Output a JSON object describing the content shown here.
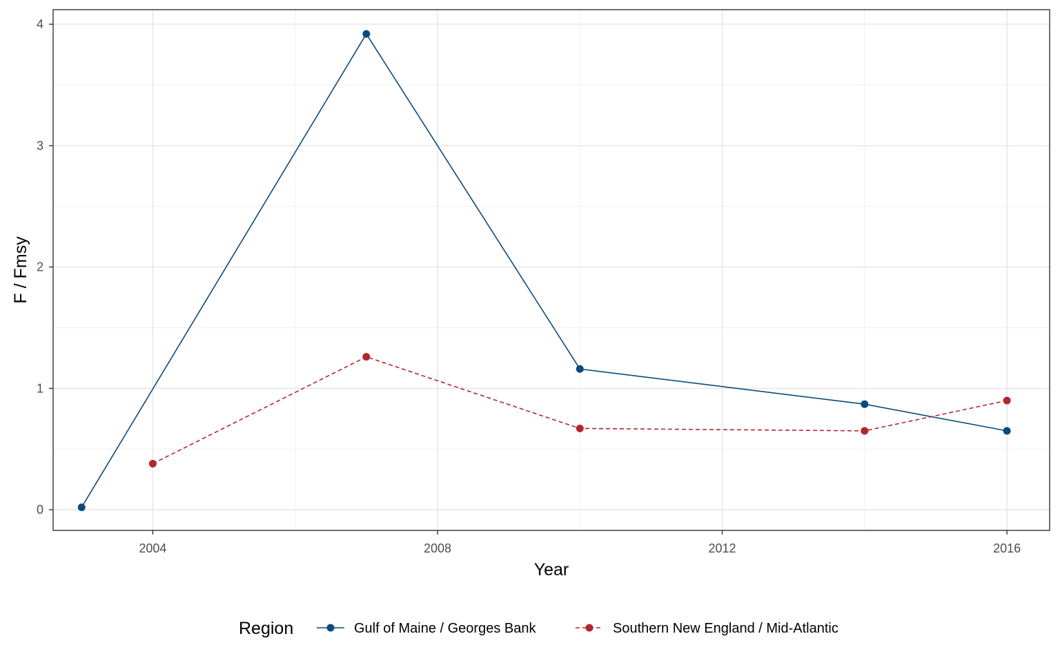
{
  "chart_data": {
    "type": "line",
    "title": "",
    "xlabel": "Year",
    "ylabel": "F / Fmsy",
    "xlim": [
      2002.6,
      2016.6
    ],
    "ylim": [
      -0.17,
      4.12
    ],
    "x_ticks": [
      2004,
      2008,
      2012,
      2016
    ],
    "x_minor_ticks": [
      2006,
      2010,
      2014
    ],
    "y_ticks": [
      0,
      1,
      2,
      3,
      4
    ],
    "y_minor_ticks": [
      0.5,
      1.5,
      2.5,
      3.5
    ],
    "grid": true,
    "legend": {
      "title": "Region",
      "position": "bottom"
    },
    "series": [
      {
        "name": "Gulf of Maine / Georges Bank",
        "color": "#0b4a7c",
        "line_style": "solid",
        "x": [
          2003,
          2007,
          2010,
          2014,
          2016
        ],
        "y": [
          0.02,
          3.92,
          1.16,
          0.87,
          0.65
        ]
      },
      {
        "name": "Southern New England / Mid-Atlantic",
        "color": "#b2262e",
        "line_style": "dashed",
        "x": [
          2004,
          2007,
          2010,
          2014,
          2016
        ],
        "y": [
          0.38,
          1.26,
          0.67,
          0.65,
          0.9
        ]
      }
    ]
  }
}
